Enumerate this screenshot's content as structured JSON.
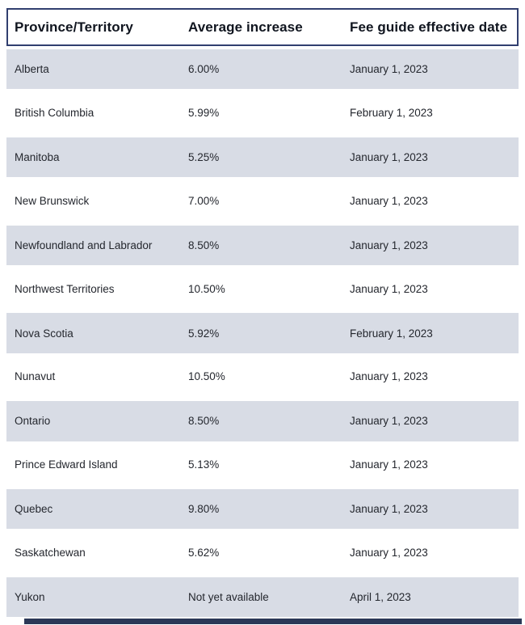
{
  "chart_data": {
    "type": "table",
    "title": "",
    "columns": [
      "Province/Territory",
      "Average increase",
      "Fee guide effective date"
    ],
    "rows": [
      {
        "province": "Alberta",
        "increase": "6.00%",
        "date": "January 1, 2023"
      },
      {
        "province": "British Columbia",
        "increase": "5.99%",
        "date": "February 1, 2023"
      },
      {
        "province": "Manitoba",
        "increase": "5.25%",
        "date": "January 1, 2023"
      },
      {
        "province": "New Brunswick",
        "increase": "7.00%",
        "date": "January 1, 2023"
      },
      {
        "province": "Newfoundland and Labrador",
        "increase": "8.50%",
        "date": "January 1, 2023"
      },
      {
        "province": "Northwest Territories",
        "increase": "10.50%",
        "date": "January 1, 2023"
      },
      {
        "province": "Nova Scotia",
        "increase": "5.92%",
        "date": "February 1, 2023"
      },
      {
        "province": "Nunavut",
        "increase": "10.50%",
        "date": "January 1, 2023"
      },
      {
        "province": "Ontario",
        "increase": "8.50%",
        "date": "January 1, 2023"
      },
      {
        "province": "Prince Edward Island",
        "increase": "5.13%",
        "date": "January 1, 2023"
      },
      {
        "province": "Quebec",
        "increase": "9.80%",
        "date": "January 1, 2023"
      },
      {
        "province": "Saskatchewan",
        "increase": "5.62%",
        "date": "January 1, 2023"
      },
      {
        "province": "Yukon",
        "increase": "Not yet available",
        "date": "April 1, 2023"
      }
    ],
    "layout": {
      "striped": true,
      "stripe_rows": "odd",
      "header_boxed": true
    }
  },
  "colors": {
    "table_border": "#313f6f",
    "row_stripe": "#d8dce5",
    "header_text": "#10151f",
    "body_text": "#24272e",
    "bottom_bar": "#2b3857",
    "background": "#ffffff"
  }
}
